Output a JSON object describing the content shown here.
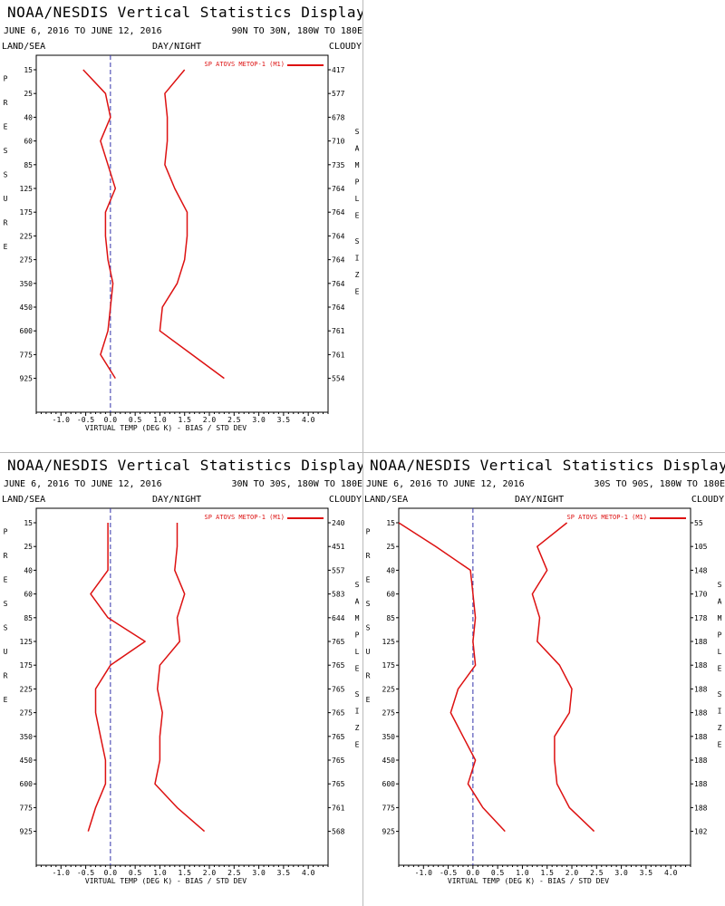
{
  "colors": {
    "series": "#dd1111",
    "zero_line": "#3333aa",
    "axis": "#000000",
    "divider": "#bbbbbb"
  },
  "panels": [
    {
      "title": "NOAA/NESDIS Vertical Statistics Display",
      "date_range": "JUNE 6, 2016 TO JUNE 12, 2016",
      "region": "90N TO 30N, 180W TO 180E",
      "header_left": "LAND/SEA",
      "header_center": "DAY/NIGHT",
      "header_right": "CLOUDY",
      "left_axis_label": "PRESSURE",
      "right_axis_label": "SAMPLE SIZE",
      "legend": "SP ATOVS METOP-1 (M1)",
      "x_axis_label": "VIRTUAL TEMP (DEG K) - BIAS / STD DEV",
      "sample_sizes": [
        "417",
        "577",
        "678",
        "710",
        "735",
        "764",
        "764",
        "764",
        "764",
        "764",
        "764",
        "761",
        "761",
        "554"
      ]
    },
    {
      "title": "NOAA/NESDIS Vertical Statistics Display",
      "date_range": "JUNE 6, 2016 TO JUNE 12, 2016",
      "region": "30N TO 30S, 180W TO 180E",
      "header_left": "LAND/SEA",
      "header_center": "DAY/NIGHT",
      "header_right": "CLOUDY",
      "left_axis_label": "PRESSURE",
      "right_axis_label": "SAMPLE SIZE",
      "legend": "SP ATOVS METOP-1 (M1)",
      "x_axis_label": "VIRTUAL TEMP (DEG K) - BIAS / STD DEV",
      "sample_sizes": [
        "240",
        "451",
        "557",
        "583",
        "644",
        "765",
        "765",
        "765",
        "765",
        "765",
        "765",
        "765",
        "761",
        "568"
      ]
    },
    {
      "title": "NOAA/NESDIS Vertical Statistics Display",
      "date_range": "JUNE 6, 2016 TO JUNE 12, 2016",
      "region": "30S TO 90S, 180W TO 180E",
      "header_left": "LAND/SEA",
      "header_center": "DAY/NIGHT",
      "header_right": "CLOUDY",
      "left_axis_label": "PRESSURE",
      "right_axis_label": "SAMPLE SIZE",
      "legend": "SP ATOVS METOP-1 (M1)",
      "x_axis_label": "VIRTUAL TEMP (DEG K) - BIAS / STD DEV",
      "sample_sizes": [
        "55",
        "105",
        "148",
        "170",
        "178",
        "188",
        "188",
        "188",
        "188",
        "188",
        "188",
        "188",
        "188",
        "102"
      ]
    }
  ],
  "chart_data": [
    {
      "type": "line",
      "y_ticks": [
        "15",
        "25",
        "40",
        "60",
        "85",
        "125",
        "175",
        "225",
        "275",
        "350",
        "450",
        "600",
        "775",
        "925"
      ],
      "x_ticks": [
        "-1.0",
        "-0.5",
        "0.0",
        "0.5",
        "1.0",
        "1.5",
        "2.0",
        "2.5",
        "3.0",
        "3.5",
        "4.0"
      ],
      "xlim": [
        -1.5,
        4.4
      ],
      "y_inverted": true,
      "series": [
        {
          "name": "SP ATOVS METOP-1 (M1)",
          "values": [
            -0.55,
            -0.1,
            0.0,
            -0.2,
            -0.05,
            0.1,
            -0.1,
            -0.1,
            -0.05,
            0.05,
            0.0,
            -0.05,
            -0.2,
            0.1
          ]
        },
        {
          "values": [
            1.5,
            1.1,
            1.15,
            1.15,
            1.1,
            1.3,
            1.55,
            1.55,
            1.5,
            1.35,
            1.05,
            1.0,
            1.65,
            2.3
          ]
        }
      ]
    },
    {
      "type": "line",
      "y_ticks": [
        "15",
        "25",
        "40",
        "60",
        "85",
        "125",
        "175",
        "225",
        "275",
        "350",
        "450",
        "600",
        "775",
        "925"
      ],
      "x_ticks": [
        "-1.0",
        "-0.5",
        "0.0",
        "0.5",
        "1.0",
        "1.5",
        "2.0",
        "2.5",
        "3.0",
        "3.5",
        "4.0"
      ],
      "xlim": [
        -1.5,
        4.4
      ],
      "y_inverted": true,
      "series": [
        {
          "name": "SP ATOVS METOP-1 (M1)",
          "values": [
            -0.05,
            -0.05,
            -0.05,
            -0.4,
            -0.05,
            0.7,
            0.0,
            -0.3,
            -0.3,
            -0.2,
            -0.1,
            -0.1,
            -0.3,
            -0.45
          ]
        },
        {
          "values": [
            1.35,
            1.35,
            1.3,
            1.5,
            1.35,
            1.4,
            1.0,
            0.95,
            1.05,
            1.0,
            1.0,
            0.9,
            1.35,
            1.9
          ]
        }
      ]
    },
    {
      "type": "line",
      "y_ticks": [
        "15",
        "25",
        "40",
        "60",
        "85",
        "125",
        "175",
        "225",
        "275",
        "350",
        "450",
        "600",
        "775",
        "925"
      ],
      "x_ticks": [
        "-1.0",
        "-0.5",
        "0.0",
        "0.5",
        "1.0",
        "1.5",
        "2.0",
        "2.5",
        "3.0",
        "3.5",
        "4.0"
      ],
      "xlim": [
        -1.5,
        4.4
      ],
      "y_inverted": true,
      "series": [
        {
          "name": "SP ATOVS METOP-1 (M1)",
          "values": [
            -1.5,
            -0.75,
            -0.05,
            0.0,
            0.05,
            0.0,
            0.05,
            -0.3,
            -0.45,
            -0.2,
            0.05,
            -0.1,
            0.2,
            0.65
          ]
        },
        {
          "values": [
            1.9,
            1.3,
            1.5,
            1.2,
            1.35,
            1.3,
            1.75,
            2.0,
            1.95,
            1.65,
            1.65,
            1.7,
            1.95,
            2.45
          ]
        }
      ]
    }
  ]
}
